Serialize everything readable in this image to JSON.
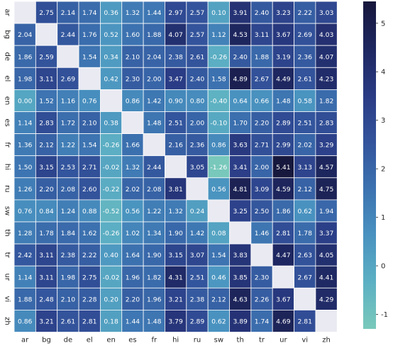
{
  "chart_data": {
    "type": "heatmap",
    "title": "",
    "xlabel": "",
    "ylabel": "",
    "x_categories": [
      "ar",
      "bg",
      "de",
      "el",
      "en",
      "es",
      "fr",
      "hi",
      "ru",
      "sw",
      "th",
      "tr",
      "ur",
      "vi",
      "zh"
    ],
    "y_categories": [
      "ar",
      "bg",
      "de",
      "el",
      "en",
      "es",
      "fr",
      "hi",
      "ru",
      "sw",
      "th",
      "tr",
      "ur",
      "vi",
      "zh"
    ],
    "values": [
      [
        null,
        2.75,
        2.14,
        1.74,
        0.36,
        1.32,
        1.44,
        2.97,
        2.57,
        0.1,
        3.91,
        2.4,
        3.23,
        2.22,
        3.03
      ],
      [
        2.04,
        null,
        2.44,
        1.76,
        0.52,
        1.6,
        1.88,
        4.07,
        2.57,
        1.12,
        4.53,
        3.11,
        3.67,
        2.69,
        4.03
      ],
      [
        1.86,
        2.59,
        null,
        1.54,
        0.34,
        2.1,
        2.04,
        2.38,
        2.61,
        -0.26,
        2.4,
        1.88,
        3.19,
        2.36,
        4.07
      ],
      [
        1.98,
        3.11,
        2.69,
        null,
        0.42,
        2.3,
        2.0,
        3.47,
        2.4,
        1.58,
        4.89,
        2.67,
        4.49,
        2.61,
        4.23
      ],
      [
        0.0,
        1.52,
        1.16,
        0.76,
        null,
        0.86,
        1.42,
        0.9,
        0.8,
        -0.4,
        0.64,
        0.66,
        1.48,
        0.58,
        1.82
      ],
      [
        1.14,
        2.83,
        1.72,
        2.1,
        0.38,
        null,
        1.48,
        2.51,
        2.0,
        -0.1,
        1.7,
        2.2,
        2.89,
        2.51,
        2.83
      ],
      [
        1.36,
        2.12,
        1.22,
        1.54,
        -0.26,
        1.66,
        null,
        2.16,
        2.36,
        0.86,
        3.63,
        2.71,
        2.99,
        2.02,
        3.29
      ],
      [
        1.5,
        3.15,
        2.53,
        2.71,
        -0.02,
        1.32,
        2.44,
        null,
        3.05,
        -1.26,
        3.41,
        2.0,
        5.41,
        3.13,
        4.57
      ],
      [
        1.26,
        2.2,
        2.08,
        2.6,
        -0.22,
        2.02,
        2.08,
        3.81,
        null,
        0.56,
        4.81,
        3.09,
        4.59,
        2.12,
        4.75
      ],
      [
        0.76,
        0.84,
        1.24,
        0.88,
        -0.52,
        0.56,
        1.22,
        1.32,
        0.24,
        null,
        3.25,
        2.5,
        1.86,
        0.62,
        1.94
      ],
      [
        1.28,
        1.78,
        1.84,
        1.62,
        -0.26,
        1.02,
        1.34,
        1.9,
        1.42,
        0.08,
        null,
        1.46,
        2.81,
        1.78,
        3.37
      ],
      [
        2.42,
        3.11,
        2.38,
        2.22,
        0.4,
        1.64,
        1.9,
        3.15,
        3.07,
        1.54,
        3.83,
        null,
        4.47,
        2.63,
        4.05
      ],
      [
        1.14,
        3.11,
        1.98,
        2.75,
        -0.02,
        1.96,
        1.82,
        4.31,
        2.51,
        0.46,
        3.85,
        2.3,
        null,
        2.67,
        4.41
      ],
      [
        1.88,
        2.48,
        2.1,
        2.28,
        0.2,
        2.2,
        1.96,
        3.21,
        2.38,
        2.12,
        4.63,
        2.26,
        3.67,
        null,
        4.29
      ],
      [
        0.86,
        3.21,
        2.61,
        2.81,
        0.18,
        1.44,
        1.48,
        3.79,
        2.89,
        0.62,
        3.89,
        1.74,
        4.69,
        2.81,
        null
      ]
    ],
    "colorbar": {
      "range": [
        -1.3,
        5.45
      ],
      "ticks": [
        -1,
        0,
        1,
        2,
        3,
        4,
        5
      ],
      "tick_labels": [
        "-1",
        "0",
        "1",
        "2",
        "3",
        "4",
        "5"
      ]
    },
    "diagonal_color": "#eaeaf2",
    "colormap": [
      "#79c9bb",
      "#5cb0c3",
      "#4992c0",
      "#3c72b0",
      "#33549c",
      "#2a3b84",
      "#1e2760",
      "#17173c"
    ],
    "grid": true,
    "legend": "colorbar-right"
  }
}
